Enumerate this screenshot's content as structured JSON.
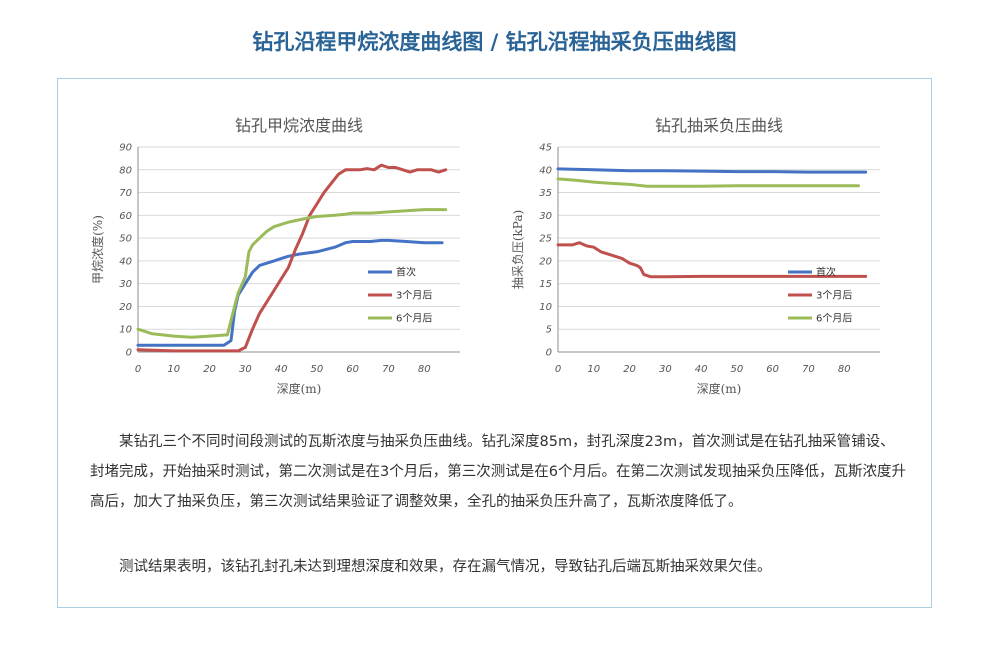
{
  "page": {
    "title": "钻孔沿程甲烷浓度曲线图 / 钻孔沿程抽采负压曲线图",
    "paragraph1": "某钻孔三个不同时间段测试的瓦斯浓度与抽采负压曲线。钻孔深度85m，封孔深度23m，首次测试是在钻孔抽采管铺设、封堵完成，开始抽采时测试，第二次测试是在3个月后，第三次测试是在6个月后。在第二次测试发现抽采负压降低，瓦斯浓度升高后，加大了抽采负压，第三次测试结果验证了调整效果，全孔的抽采负压升高了，瓦斯浓度降低了。",
    "paragraph2": "测试结果表明，该钻孔封孔未达到理想深度和效果，存在漏气情况，导致钻孔后端瓦斯抽采效果欠佳。"
  },
  "chart_data": [
    {
      "type": "line",
      "title": "钻孔甲烷浓度曲线",
      "xlabel": "深度(m)",
      "ylabel": "甲烷浓度(%)",
      "xlim": [
        0,
        90
      ],
      "ylim": [
        0,
        90
      ],
      "xticks": [
        "0",
        "10",
        "20",
        "30",
        "40",
        "50",
        "60",
        "70",
        "80"
      ],
      "yticks": [
        "0",
        "10",
        "20",
        "30",
        "40",
        "50",
        "60",
        "70",
        "80",
        "90"
      ],
      "grid": true,
      "legend": "right",
      "series": [
        {
          "name": "首次",
          "color": "#4472c4",
          "points": [
            [
              0,
              3
            ],
            [
              5,
              3
            ],
            [
              10,
              3
            ],
            [
              15,
              3
            ],
            [
              20,
              3
            ],
            [
              24,
              3
            ],
            [
              26,
              5
            ],
            [
              27,
              18
            ],
            [
              28,
              25
            ],
            [
              30,
              30
            ],
            [
              32,
              35
            ],
            [
              34,
              38
            ],
            [
              36,
              39
            ],
            [
              38,
              40
            ],
            [
              40,
              41
            ],
            [
              42,
              42
            ],
            [
              45,
              43
            ],
            [
              50,
              44
            ],
            [
              55,
              46
            ],
            [
              58,
              48
            ],
            [
              60,
              48.5
            ],
            [
              65,
              48.5
            ],
            [
              68,
              49
            ],
            [
              70,
              49
            ],
            [
              75,
              48.5
            ],
            [
              80,
              48
            ],
            [
              85,
              48
            ]
          ]
        },
        {
          "name": "3个月后",
          "color": "#c0504d",
          "points": [
            [
              0,
              1
            ],
            [
              10,
              0.5
            ],
            [
              20,
              0.5
            ],
            [
              28,
              0.5
            ],
            [
              30,
              2
            ],
            [
              32,
              10
            ],
            [
              34,
              17
            ],
            [
              36,
              22
            ],
            [
              38,
              27
            ],
            [
              40,
              32
            ],
            [
              42,
              37
            ],
            [
              44,
              45
            ],
            [
              46,
              52
            ],
            [
              48,
              60
            ],
            [
              50,
              65
            ],
            [
              52,
              70
            ],
            [
              54,
              74
            ],
            [
              56,
              78
            ],
            [
              58,
              80
            ],
            [
              60,
              80
            ],
            [
              62,
              80
            ],
            [
              64,
              80.5
            ],
            [
              66,
              80
            ],
            [
              68,
              82
            ],
            [
              70,
              81
            ],
            [
              72,
              81
            ],
            [
              74,
              80
            ],
            [
              76,
              79
            ],
            [
              78,
              80
            ],
            [
              80,
              80
            ],
            [
              82,
              80
            ],
            [
              84,
              79
            ],
            [
              86,
              80
            ]
          ]
        },
        {
          "name": "6个月后",
          "color": "#9bbb59",
          "points": [
            [
              0,
              10
            ],
            [
              4,
              8
            ],
            [
              10,
              7
            ],
            [
              15,
              6.5
            ],
            [
              20,
              7
            ],
            [
              25,
              7.5
            ],
            [
              27,
              20
            ],
            [
              28,
              26
            ],
            [
              30,
              33
            ],
            [
              31,
              44
            ],
            [
              32,
              47
            ],
            [
              34,
              50
            ],
            [
              36,
              53
            ],
            [
              38,
              55
            ],
            [
              40,
              56
            ],
            [
              42,
              57
            ],
            [
              45,
              58
            ],
            [
              48,
              59
            ],
            [
              50,
              59.5
            ],
            [
              55,
              60
            ],
            [
              58,
              60.5
            ],
            [
              60,
              61
            ],
            [
              65,
              61
            ],
            [
              70,
              61.5
            ],
            [
              75,
              62
            ],
            [
              80,
              62.5
            ],
            [
              86,
              62.5
            ]
          ]
        }
      ]
    },
    {
      "type": "line",
      "title": "钻孔抽采负压曲线",
      "xlabel": "深度(m)",
      "ylabel": "抽采负压(kPa)",
      "xlim": [
        0,
        90
      ],
      "ylim": [
        0,
        45
      ],
      "xticks": [
        "0",
        "10",
        "20",
        "30",
        "40",
        "50",
        "60",
        "70",
        "80"
      ],
      "yticks": [
        "0",
        "5",
        "10",
        "15",
        "20",
        "25",
        "30",
        "35",
        "40",
        "45"
      ],
      "grid": true,
      "legend": "right",
      "series": [
        {
          "name": "首次",
          "color": "#4472c4",
          "points": [
            [
              0,
              40.2
            ],
            [
              10,
              40
            ],
            [
              20,
              39.8
            ],
            [
              30,
              39.8
            ],
            [
              40,
              39.7
            ],
            [
              50,
              39.6
            ],
            [
              60,
              39.6
            ],
            [
              70,
              39.5
            ],
            [
              80,
              39.5
            ],
            [
              86,
              39.5
            ]
          ]
        },
        {
          "name": "3个月后",
          "color": "#c0504d",
          "points": [
            [
              0,
              23.5
            ],
            [
              4,
              23.5
            ],
            [
              6,
              24
            ],
            [
              8,
              23.3
            ],
            [
              10,
              23
            ],
            [
              12,
              22
            ],
            [
              14,
              21.5
            ],
            [
              16,
              21
            ],
            [
              18,
              20.5
            ],
            [
              20,
              19.5
            ],
            [
              22,
              19
            ],
            [
              23,
              18.5
            ],
            [
              24,
              17
            ],
            [
              26,
              16.5
            ],
            [
              30,
              16.5
            ],
            [
              40,
              16.6
            ],
            [
              50,
              16.6
            ],
            [
              60,
              16.6
            ],
            [
              70,
              16.6
            ],
            [
              80,
              16.6
            ],
            [
              86,
              16.6
            ]
          ]
        },
        {
          "name": "6个月后",
          "color": "#9bbb59",
          "points": [
            [
              0,
              38
            ],
            [
              5,
              37.7
            ],
            [
              10,
              37.3
            ],
            [
              15,
              37
            ],
            [
              20,
              36.8
            ],
            [
              25,
              36.4
            ],
            [
              30,
              36.4
            ],
            [
              40,
              36.4
            ],
            [
              50,
              36.5
            ],
            [
              60,
              36.5
            ],
            [
              70,
              36.5
            ],
            [
              80,
              36.5
            ],
            [
              84,
              36.5
            ]
          ]
        }
      ]
    }
  ]
}
